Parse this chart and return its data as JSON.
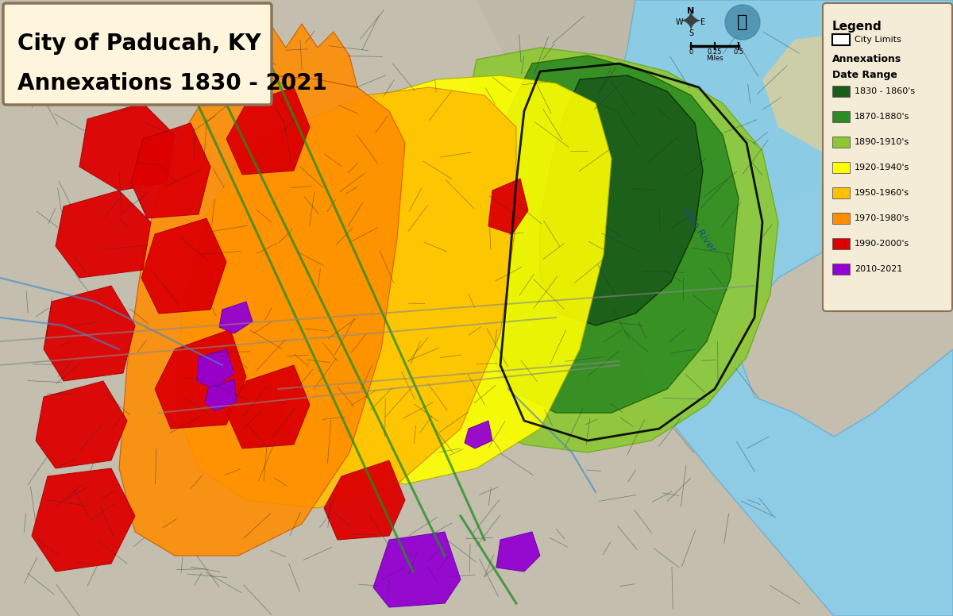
{
  "title_line1": "City of Paducah, KY",
  "title_line2": "Annexations 1830 - 2021",
  "title_box_color": "#FFF5DC",
  "title_border_color": "#8B7355",
  "background_color": "#C8C4B0",
  "river_color": "#87CEEB",
  "legend_bg": "#F5ECD7",
  "legend_border": "#8B7355",
  "legend_title": "Legend",
  "legend_sublabel1": "City Limits",
  "legend_sublabel2": "Annexations",
  "legend_sublabel3": "Date Range",
  "annexation_colors": [
    "#1A5C1A",
    "#2E8B22",
    "#8DC832",
    "#FFFF00",
    "#FFC000",
    "#FF8C00",
    "#DD0000",
    "#9400D3"
  ],
  "annexation_labels": [
    "1830 - 1860's",
    "1870-1880's",
    "1890-1910's",
    "1920-1940's",
    "1950-1960's",
    "1970-1980's",
    "1990-2000's",
    "2010-2021"
  ],
  "figsize": [
    12.0,
    7.76
  ],
  "dpi": 100
}
